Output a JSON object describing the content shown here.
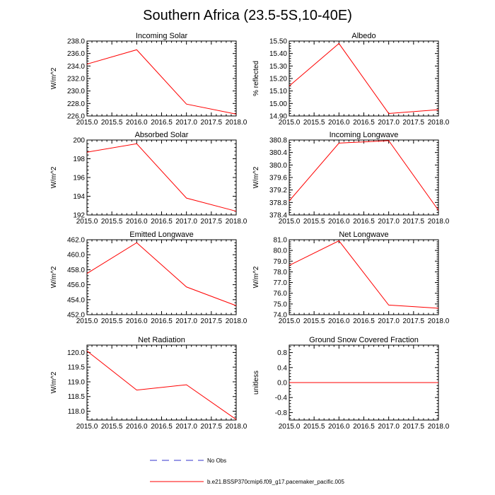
{
  "page_title": "Southern Africa (23.5-5S,10-40E)",
  "colors": {
    "series": "#ff0000",
    "obs": "#3333cc",
    "axis": "#000000"
  },
  "legend": {
    "obs_label": "No Obs",
    "model_label": "b.e21.BSSP370cmip6.f09_g17.pacemaker_pacific.005"
  },
  "chart_data": [
    {
      "type": "line",
      "title": "Incoming Solar",
      "xlabel": "",
      "ylabel": "W/m^2",
      "x": [
        2015.0,
        2016.0,
        2017.0,
        2018.0
      ],
      "series": [
        {
          "name": "b.e21.BSSP370cmip6.f09_g17.pacemaker_pacific.005",
          "values": [
            234.3,
            236.6,
            227.9,
            226.3
          ]
        }
      ],
      "xlim": [
        2015.0,
        2018.0
      ],
      "ylim": [
        226.0,
        238.0
      ],
      "xticks": [
        "2015.0",
        "2015.5",
        "2016.0",
        "2016.5",
        "2017.0",
        "2017.5",
        "2018.0"
      ],
      "yticks": [
        "226.0",
        "228.0",
        "230.0",
        "232.0",
        "234.0",
        "236.0",
        "238.0"
      ]
    },
    {
      "type": "line",
      "title": "Albedo",
      "xlabel": "",
      "ylabel": "% reflected",
      "x": [
        2015.0,
        2016.0,
        2017.0,
        2018.0
      ],
      "series": [
        {
          "name": "b.e21.BSSP370cmip6.f09_g17.pacemaker_pacific.005",
          "values": [
            15.14,
            15.48,
            14.92,
            14.95
          ]
        }
      ],
      "xlim": [
        2015.0,
        2018.0
      ],
      "ylim": [
        14.9,
        15.5
      ],
      "xticks": [
        "2015.0",
        "2015.5",
        "2016.0",
        "2016.5",
        "2017.0",
        "2017.5",
        "2018.0"
      ],
      "yticks": [
        "14.90",
        "15.00",
        "15.10",
        "15.20",
        "15.30",
        "15.40",
        "15.50"
      ]
    },
    {
      "type": "line",
      "title": "Absorbed Solar",
      "xlabel": "",
      "ylabel": "W/m^2",
      "x": [
        2015.0,
        2016.0,
        2017.0,
        2018.0
      ],
      "series": [
        {
          "name": "b.e21.BSSP370cmip6.f09_g17.pacemaker_pacific.005",
          "values": [
            198.7,
            199.6,
            193.8,
            192.4
          ]
        }
      ],
      "xlim": [
        2015.0,
        2018.0
      ],
      "ylim": [
        192.0,
        200.0
      ],
      "xticks": [
        "2015.0",
        "2015.5",
        "2016.0",
        "2016.5",
        "2017.0",
        "2017.5",
        "2018.0"
      ],
      "yticks": [
        "192",
        "194",
        "196",
        "198",
        "200"
      ]
    },
    {
      "type": "line",
      "title": "Incoming Longwave",
      "xlabel": "",
      "ylabel": "W/m^2",
      "x": [
        2015.0,
        2016.0,
        2017.0,
        2018.0
      ],
      "series": [
        {
          "name": "b.e21.BSSP370cmip6.f09_g17.pacemaker_pacific.005",
          "values": [
            378.85,
            380.7,
            380.78,
            378.55
          ]
        }
      ],
      "xlim": [
        2015.0,
        2018.0
      ],
      "ylim": [
        378.4,
        380.8
      ],
      "xticks": [
        "2015.0",
        "2015.5",
        "2016.0",
        "2016.5",
        "2017.0",
        "2017.5",
        "2018.0"
      ],
      "yticks": [
        "378.4",
        "378.8",
        "379.2",
        "379.6",
        "380.0",
        "380.4",
        "380.8"
      ]
    },
    {
      "type": "line",
      "title": "Emitted Longwave",
      "xlabel": "",
      "ylabel": "W/m^2",
      "x": [
        2015.0,
        2016.0,
        2017.0,
        2018.0
      ],
      "series": [
        {
          "name": "b.e21.BSSP370cmip6.f09_g17.pacemaker_pacific.005",
          "values": [
            457.5,
            461.6,
            455.7,
            453.2
          ]
        }
      ],
      "xlim": [
        2015.0,
        2018.0
      ],
      "ylim": [
        452.0,
        462.0
      ],
      "xticks": [
        "2015.0",
        "2015.5",
        "2016.0",
        "2016.5",
        "2017.0",
        "2017.5",
        "2018.0"
      ],
      "yticks": [
        "452.0",
        "454.0",
        "456.0",
        "458.0",
        "460.0",
        "462.0"
      ]
    },
    {
      "type": "line",
      "title": "Net Longwave",
      "xlabel": "",
      "ylabel": "W/m^2",
      "x": [
        2015.0,
        2016.0,
        2017.0,
        2018.0
      ],
      "series": [
        {
          "name": "b.e21.BSSP370cmip6.f09_g17.pacemaker_pacific.005",
          "values": [
            78.6,
            80.9,
            74.9,
            74.6
          ]
        }
      ],
      "xlim": [
        2015.0,
        2018.0
      ],
      "ylim": [
        74.0,
        81.0
      ],
      "xticks": [
        "2015.0",
        "2015.5",
        "2016.0",
        "2016.5",
        "2017.0",
        "2017.5",
        "2018.0"
      ],
      "yticks": [
        "74.0",
        "75.0",
        "76.0",
        "77.0",
        "78.0",
        "79.0",
        "80.0",
        "81.0"
      ]
    },
    {
      "type": "line",
      "title": "Net Radiation",
      "xlabel": "",
      "ylabel": "W/m^2",
      "x": [
        2015.0,
        2016.0,
        2017.0,
        2018.0
      ],
      "series": [
        {
          "name": "b.e21.BSSP370cmip6.f09_g17.pacemaker_pacific.005",
          "values": [
            120.05,
            118.72,
            118.9,
            117.72
          ]
        }
      ],
      "xlim": [
        2015.0,
        2018.0
      ],
      "ylim": [
        117.7,
        120.25
      ],
      "xticks": [
        "2015.0",
        "2015.5",
        "2016.0",
        "2016.5",
        "2017.0",
        "2017.5",
        "2018.0"
      ],
      "yticks": [
        "118.0",
        "118.5",
        "119.0",
        "119.5",
        "120.0"
      ]
    },
    {
      "type": "line",
      "title": "Ground Snow Covered Fraction",
      "xlabel": "",
      "ylabel": "unitless",
      "x": [
        2015.0,
        2016.0,
        2017.0,
        2018.0
      ],
      "series": [
        {
          "name": "b.e21.BSSP370cmip6.f09_g17.pacemaker_pacific.005",
          "values": [
            0.0,
            0.0,
            0.0,
            0.0
          ]
        }
      ],
      "xlim": [
        2015.0,
        2018.0
      ],
      "ylim": [
        -1.0,
        1.0
      ],
      "xticks": [
        "2015.0",
        "2015.5",
        "2016.0",
        "2016.5",
        "2017.0",
        "2017.5",
        "2018.0"
      ],
      "yticks": [
        "-0.8",
        "-0.4",
        "0.0",
        "0.4",
        "0.8"
      ]
    }
  ]
}
